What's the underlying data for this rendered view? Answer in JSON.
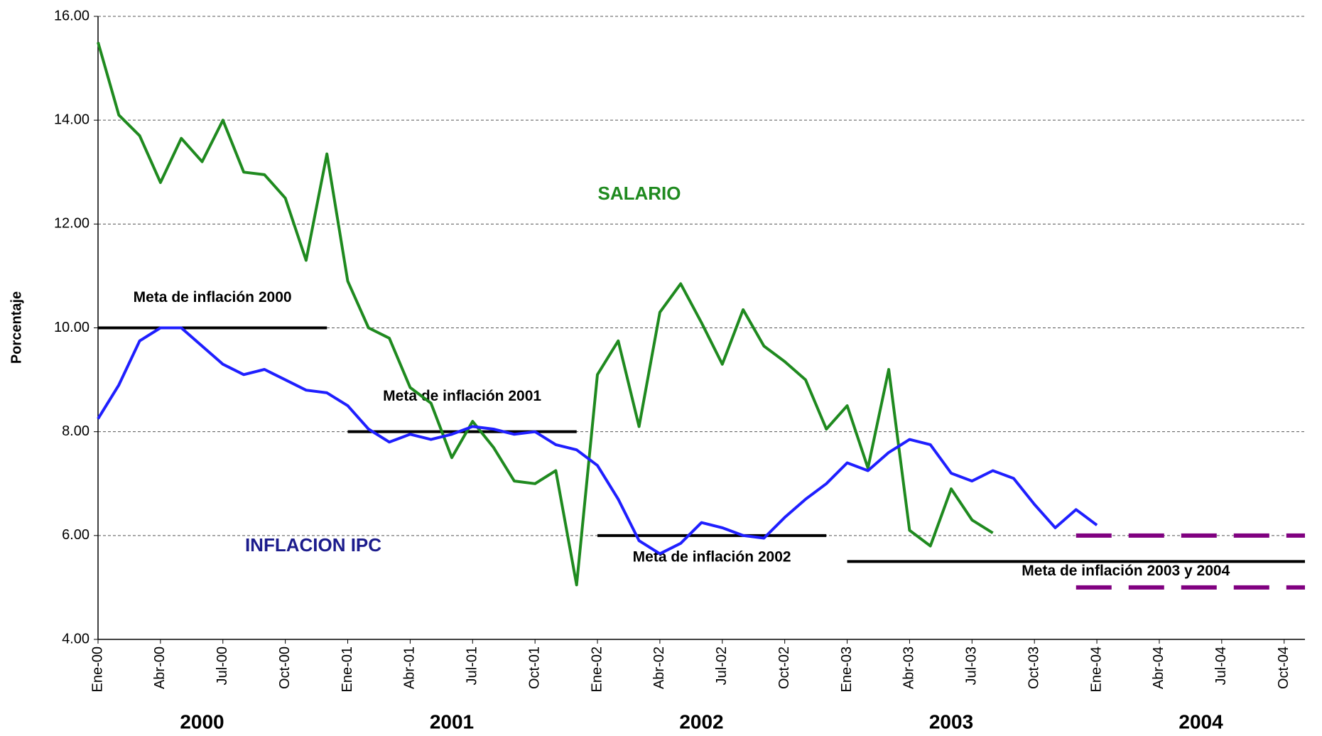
{
  "chart_data": {
    "type": "line",
    "y_label": "Porcentaje",
    "categories": [
      "Ene-00",
      null,
      null,
      "Abr-00",
      null,
      null,
      "Jul-00",
      null,
      null,
      "Oct-00",
      null,
      null,
      "Ene-01",
      null,
      null,
      "Abr-01",
      null,
      null,
      "Jul-01",
      null,
      null,
      "Oct-01",
      null,
      null,
      "Ene-02",
      null,
      null,
      "Abr-02",
      null,
      null,
      "Jul-02",
      null,
      null,
      "Oct-02",
      null,
      null,
      "Ene-03",
      null,
      null,
      "Abr-03",
      null,
      null,
      "Jul-03",
      null,
      null,
      "Oct-03",
      null,
      null,
      "Ene-04",
      null,
      null,
      "Abr-04",
      null,
      null,
      "Jul-04",
      null,
      null,
      "Oct-04",
      null
    ],
    "year_labels": [
      "2000",
      "2001",
      "2002",
      "2003",
      "2004"
    ],
    "series": [
      {
        "name": "SALARIO",
        "color": "#1f8a1f",
        "values": [
          15.5,
          14.1,
          13.7,
          12.8,
          13.65,
          13.2,
          14.0,
          13.0,
          12.95,
          12.5,
          11.3,
          13.35,
          10.9,
          10.0,
          9.8,
          8.85,
          8.55,
          7.5,
          8.2,
          7.7,
          7.05,
          7.0,
          7.25,
          5.05,
          9.1,
          9.75,
          8.1,
          10.3,
          10.85,
          10.1,
          9.3,
          10.35,
          9.65,
          9.35,
          9.0,
          8.05,
          8.5,
          7.3,
          9.2,
          6.1,
          5.8,
          6.9,
          6.3,
          6.05,
          null,
          null,
          null,
          null,
          null,
          null,
          null,
          null,
          null,
          null,
          null,
          null,
          null,
          null,
          null
        ]
      },
      {
        "name": "INFLACION IPC",
        "color": "#1f1fff",
        "values": [
          8.25,
          8.9,
          9.75,
          10.0,
          10.0,
          9.65,
          9.3,
          9.1,
          9.2,
          9.0,
          8.8,
          8.75,
          8.5,
          8.05,
          7.8,
          7.95,
          7.85,
          7.95,
          8.1,
          8.05,
          7.95,
          8.0,
          7.75,
          7.65,
          7.35,
          6.7,
          5.9,
          5.65,
          5.85,
          6.25,
          6.15,
          6.0,
          5.95,
          6.35,
          6.7,
          7.0,
          7.4,
          7.25,
          7.6,
          7.85,
          7.75,
          7.2,
          7.05,
          7.25,
          7.1,
          6.6,
          6.15,
          6.5,
          6.2,
          null,
          null,
          null,
          null,
          null,
          null,
          null,
          null,
          null,
          null
        ]
      }
    ],
    "targets": [
      {
        "label": "Meta de inflación 2000",
        "value": 10,
        "from": 0,
        "to": 11
      },
      {
        "label": "Meta de inflación 2001",
        "value": 8,
        "from": 12,
        "to": 23
      },
      {
        "label": "Meta de inflación 2002",
        "value": 6,
        "from": 24,
        "to": 35
      },
      {
        "label": "Meta de inflación 2003 y 2004",
        "value": 5.5,
        "from": 36,
        "to": 58
      }
    ],
    "target_color": "#000000",
    "range_lines": {
      "color": "#800080",
      "values": [
        6,
        5
      ],
      "from": 47,
      "to": 58
    },
    "ylim": [
      4,
      16
    ],
    "yticks": [
      {
        "value": 4,
        "label": "4.00"
      },
      {
        "value": 6,
        "label": "6.00"
      },
      {
        "value": 8,
        "label": "8.00"
      },
      {
        "value": 10,
        "label": "10.00"
      },
      {
        "value": 12,
        "label": "12.00"
      },
      {
        "value": 14,
        "label": "14.00"
      },
      {
        "value": 16,
        "label": "16.00"
      }
    ],
    "grid": true
  }
}
